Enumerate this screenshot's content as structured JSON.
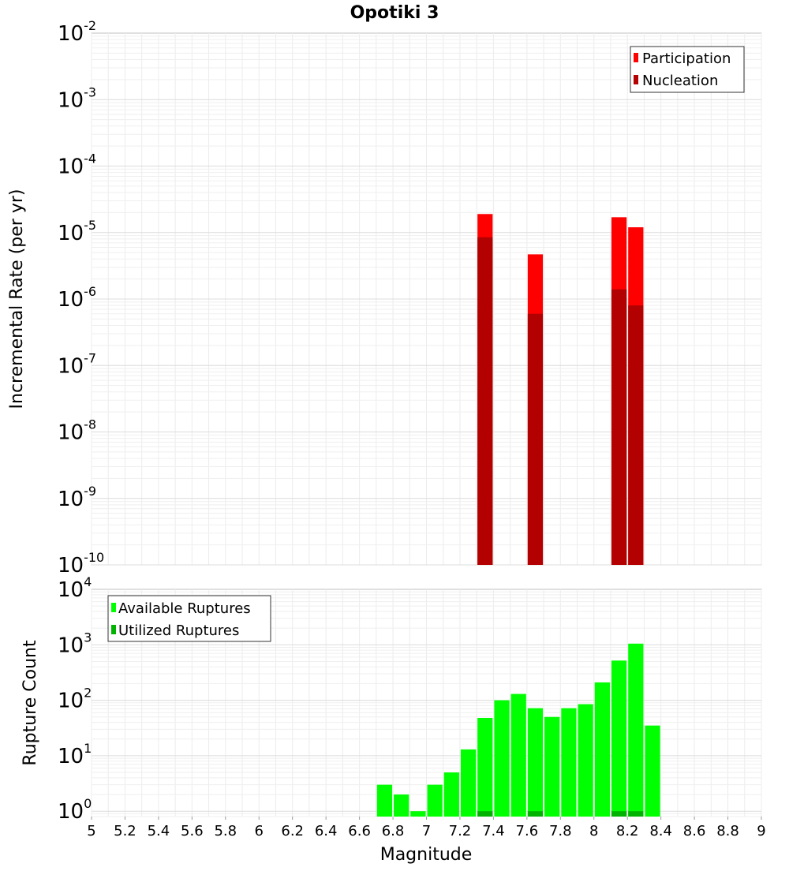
{
  "chart_data": [
    {
      "type": "bar",
      "title": "Opotiki 3",
      "xlabel": "Magnitude",
      "ylabel": "Incremental Rate (per yr)",
      "yscale": "log",
      "xlim": [
        5,
        9
      ],
      "ylim": [
        1e-10,
        0.01
      ],
      "y_ticks": [
        {
          "base": "10",
          "exp": "-10",
          "value": 1e-10
        },
        {
          "base": "10",
          "exp": "-9",
          "value": 1e-09
        },
        {
          "base": "10",
          "exp": "-8",
          "value": 1e-08
        },
        {
          "base": "10",
          "exp": "-7",
          "value": 1e-07
        },
        {
          "base": "10",
          "exp": "-6",
          "value": 1e-06
        },
        {
          "base": "10",
          "exp": "-5",
          "value": 1e-05
        },
        {
          "base": "10",
          "exp": "-4",
          "value": 0.0001
        },
        {
          "base": "10",
          "exp": "-3",
          "value": 0.001
        },
        {
          "base": "10",
          "exp": "-2",
          "value": 0.01
        }
      ],
      "bin_width": 0.1,
      "legend": {
        "position": "top-right"
      },
      "series": [
        {
          "name": "Participation",
          "color": "#ff0000",
          "x": [
            7.35,
            7.65,
            8.15,
            8.25
          ],
          "values": [
            1.9e-05,
            4.7e-06,
            1.7e-05,
            1.2e-05
          ]
        },
        {
          "name": "Nucleation",
          "color": "#b30000",
          "x": [
            7.35,
            7.65,
            8.15,
            8.25
          ],
          "values": [
            8.5e-06,
            6e-07,
            1.4e-06,
            8e-07
          ]
        }
      ]
    },
    {
      "type": "bar",
      "xlabel": "Magnitude",
      "ylabel": "Rupture Count",
      "yscale": "log",
      "xlim": [
        5,
        9
      ],
      "ylim": [
        0.8,
        10000.0
      ],
      "x_ticks": [
        "5",
        "5.2",
        "5.4",
        "5.6",
        "5.8",
        "6",
        "6.2",
        "6.4",
        "6.6",
        "6.8",
        "7",
        "7.2",
        "7.4",
        "7.6",
        "7.8",
        "8",
        "8.2",
        "8.4",
        "8.6",
        "8.8",
        "9"
      ],
      "y_ticks": [
        {
          "base": "10",
          "exp": "0",
          "value": 1
        },
        {
          "base": "10",
          "exp": "1",
          "value": 10
        },
        {
          "base": "10",
          "exp": "2",
          "value": 100
        },
        {
          "base": "10",
          "exp": "3",
          "value": 1000
        },
        {
          "base": "10",
          "exp": "4",
          "value": 10000
        }
      ],
      "bin_width": 0.1,
      "legend": {
        "position": "top-left"
      },
      "series": [
        {
          "name": "Available Ruptures",
          "color": "#00ff00",
          "x": [
            6.75,
            6.85,
            6.95,
            7.05,
            7.15,
            7.25,
            7.35,
            7.45,
            7.55,
            7.65,
            7.75,
            7.85,
            7.95,
            8.05,
            8.15,
            8.25,
            8.35
          ],
          "values": [
            3,
            2,
            1,
            3,
            5,
            13,
            48,
            100,
            130,
            72,
            50,
            72,
            85,
            210,
            520,
            1050,
            35
          ]
        },
        {
          "name": "Utilized Ruptures",
          "color": "#00b300",
          "x": [
            7.35,
            7.65,
            8.15,
            8.25
          ],
          "values": [
            1,
            1,
            1,
            1
          ]
        }
      ]
    }
  ]
}
